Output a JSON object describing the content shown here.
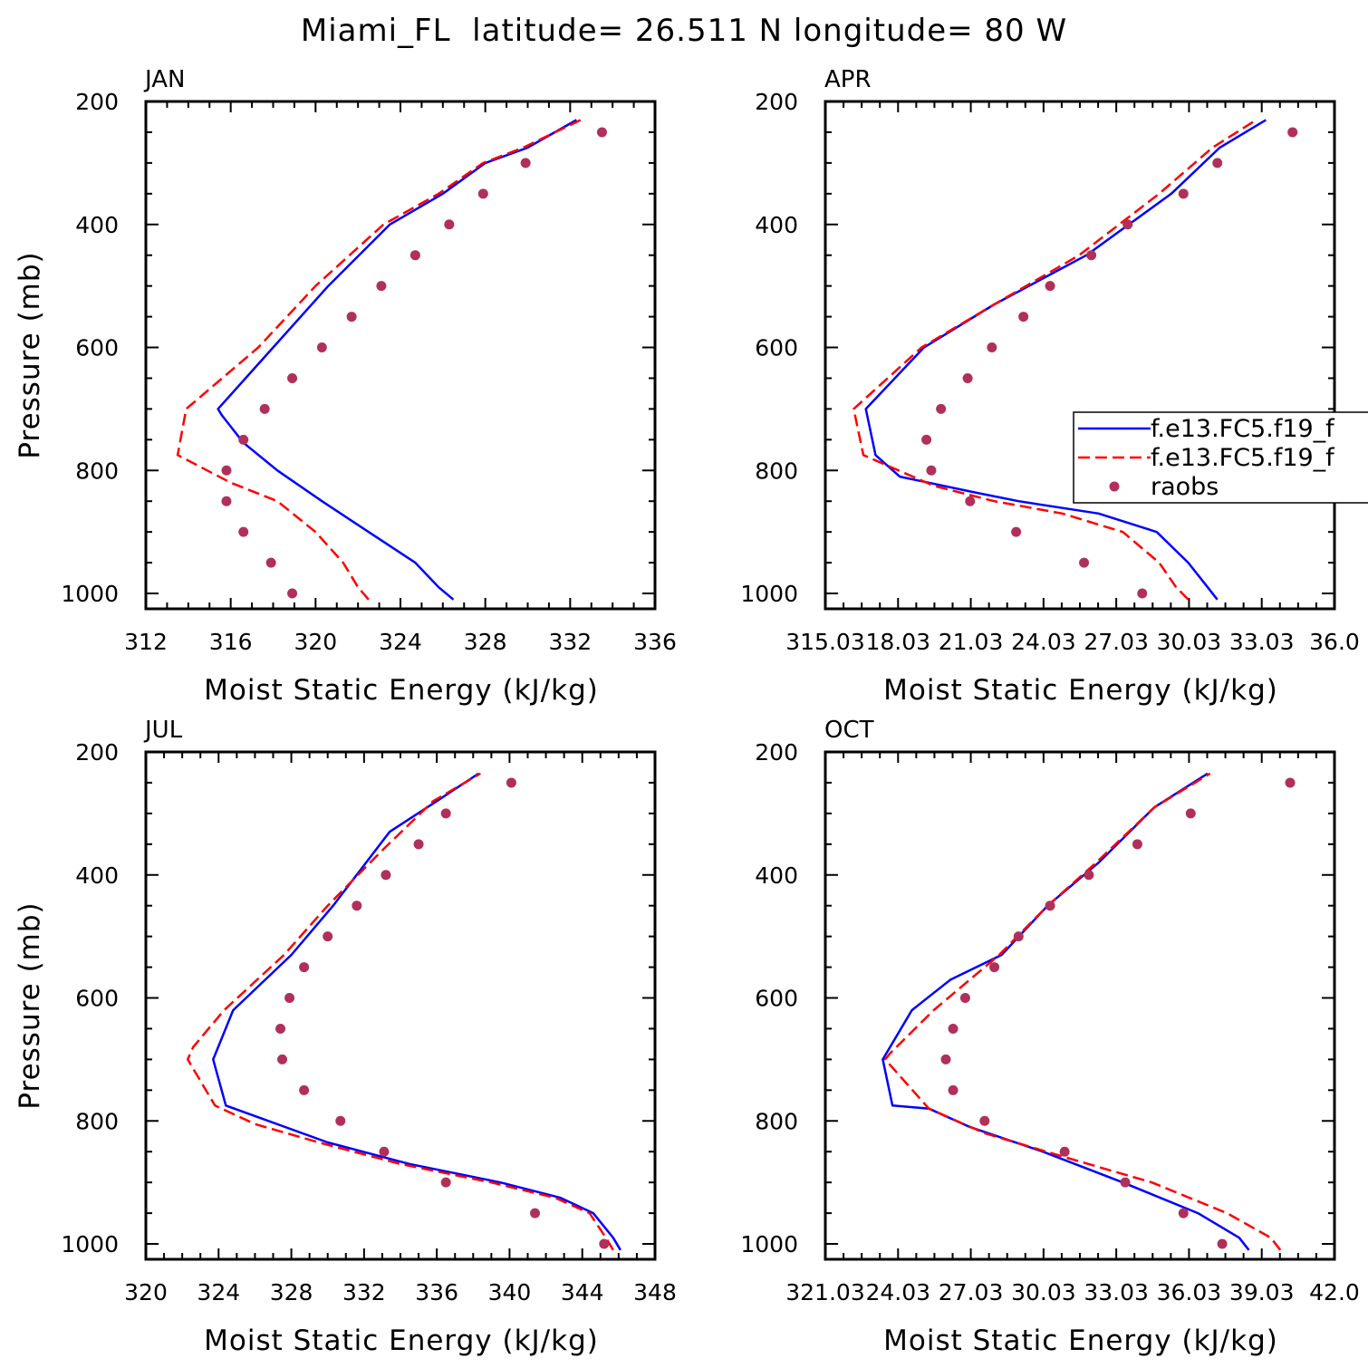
{
  "chart_data": {
    "title": "Miami_FL  latitude= 26.511 N longitude= 80 W",
    "type": "line",
    "legend": {
      "placement": "right-middle of APR panel",
      "entries": [
        "f.e13.FC5.f19_f",
        "f.e13.FC5.f19_f",
        "raobs"
      ]
    },
    "panels": [
      {
        "title": "JAN",
        "xlabel": "Moist Static Energy (kJ/kg)",
        "ylabel": "Pressure (mb)",
        "xlim": [
          312,
          336
        ],
        "ylim": [
          1025,
          200
        ],
        "xticks": [
          312,
          316,
          320,
          324,
          328,
          332,
          336
        ],
        "xtick_labels": [
          "312",
          "316",
          "320",
          "324",
          "328",
          "332",
          "336"
        ],
        "yticks": [
          200,
          400,
          600,
          800,
          1000
        ],
        "ytick_labels": [
          "200",
          "400",
          "600",
          "800",
          "1000"
        ],
        "series": [
          {
            "name": "f.e13.FC5.f19_f",
            "style": "solid",
            "color": "#0000ff",
            "x": [
              326.5,
              325.8,
              324.7,
              322.5,
              320.3,
              318.2,
              316.6,
              315.6,
              315.4,
              318.0,
              320.6,
              323.5,
              326.0,
              328.0,
              330.0,
              332.3
            ],
            "y": [
              1010,
              990,
              950,
              900,
              850,
              800,
              755,
              711,
              700,
              600,
              500,
              400,
              350,
              300,
              275,
              230
            ]
          },
          {
            "name": "f.e13.FC5.f19_f",
            "style": "dashed",
            "color": "#ff0000",
            "x": [
              322.5,
              322.0,
              321.3,
              320.0,
              318.2,
              316.0,
              313.5,
              313.9,
              317.3,
              320.0,
              323.2,
              325.8,
              327.9,
              329.8,
              332.5
            ],
            "y": [
              1010,
              990,
              950,
              900,
              850,
              820,
              775,
              700,
              600,
              500,
              400,
              350,
              300,
              275,
              230
            ]
          },
          {
            "name": "raobs",
            "style": "dots",
            "color": "#b0305a",
            "x": [
              318.9,
              317.9,
              316.6,
              315.8,
              315.8,
              316.6,
              317.6,
              318.9,
              320.3,
              321.7,
              323.1,
              324.7,
              326.3,
              327.9,
              329.9,
              333.5
            ],
            "y": [
              1000,
              950,
              900,
              850,
              800,
              750,
              700,
              650,
              600,
              550,
              500,
              450,
              400,
              350,
              300,
              250
            ]
          }
        ]
      },
      {
        "title": "APR",
        "xlabel": "Moist Static Energy (kJ/kg)",
        "ylabel": "",
        "xlim": [
          315.03,
          336.03
        ],
        "ylim": [
          1025,
          200
        ],
        "xticks": [
          315.03,
          318.03,
          321.03,
          324.03,
          327.03,
          330.03,
          333.03,
          336.03
        ],
        "xtick_labels": [
          "315.03",
          "18.03",
          "21.03",
          "24.03",
          "27.03",
          "30.03",
          "33.03",
          "36.0"
        ],
        "yticks": [
          200,
          400,
          600,
          800,
          1000
        ],
        "ytick_labels": [
          "200",
          "400",
          "600",
          "800",
          "1000"
        ],
        "series": [
          {
            "name": "f.e13.FC5.f19_f",
            "style": "solid",
            "color": "#0000ff",
            "x": [
              331.2,
              330.8,
              330.0,
              328.7,
              326.3,
              323.0,
              321.1,
              318.1,
              317.1,
              316.7,
              319.1,
              322.0,
              325.8,
              329.3,
              331.3,
              333.2
            ],
            "y": [
              1010,
              990,
              950,
              900,
              870,
              850,
              835,
              810,
              775,
              700,
              600,
              530,
              450,
              350,
              275,
              230
            ]
          },
          {
            "name": "f.e13.FC5.f19_f",
            "style": "dashed",
            "color": "#ff0000",
            "x": [
              330.0,
              329.5,
              328.8,
              327.3,
              324.8,
              322.0,
              319.5,
              316.6,
              316.2,
              319.0,
              322.0,
              325.5,
              328.8,
              331.0,
              332.8
            ],
            "y": [
              1010,
              990,
              950,
              900,
              870,
              850,
              825,
              775,
              700,
              600,
              530,
              450,
              350,
              275,
              230
            ]
          },
          {
            "name": "raobs",
            "style": "dots",
            "color": "#b0305a",
            "x": [
              328.1,
              325.7,
              322.9,
              321.0,
              319.4,
              319.2,
              319.8,
              320.9,
              321.9,
              323.2,
              324.3,
              326.0,
              327.5,
              329.8,
              331.2,
              334.3
            ],
            "y": [
              1000,
              950,
              900,
              850,
              800,
              750,
              700,
              650,
              600,
              550,
              500,
              450,
              400,
              350,
              300,
              250
            ]
          }
        ]
      },
      {
        "title": "JUL",
        "xlabel": "Moist Static Energy (kJ/kg)",
        "ylabel": "Pressure (mb)",
        "xlim": [
          320,
          348
        ],
        "ylim": [
          1025,
          200
        ],
        "xticks": [
          320,
          324,
          328,
          332,
          336,
          340,
          344,
          348
        ],
        "xtick_labels": [
          "320",
          "324",
          "328",
          "332",
          "336",
          "340",
          "344",
          "348"
        ],
        "yticks": [
          200,
          400,
          600,
          800,
          1000
        ],
        "ytick_labels": [
          "200",
          "400",
          "600",
          "800",
          "1000"
        ],
        "series": [
          {
            "name": "f.e13.FC5.f19_f",
            "style": "solid",
            "color": "#0000ff",
            "x": [
              346.1,
              345.7,
              344.6,
              342.8,
              339.5,
              334.5,
              330.0,
              324.4,
              323.7,
              324.8,
              328.0,
              330.3,
              333.4,
              336.0,
              338.3
            ],
            "y": [
              1010,
              990,
              950,
              925,
              900,
              870,
              835,
              775,
              700,
              620,
              530,
              450,
              330,
              280,
              235
            ]
          },
          {
            "name": "f.e13.FC5.f19_f",
            "style": "dashed",
            "color": "#ff0000",
            "x": [
              345.7,
              345.3,
              344.4,
              342.5,
              339.0,
              334.0,
              329.5,
              326.0,
              323.8,
              322.3,
              322.6,
              324.3,
              327.6,
              330.0,
              333.0,
              335.8,
              338.4
            ],
            "y": [
              1010,
              990,
              950,
              925,
              900,
              870,
              835,
              805,
              775,
              700,
              680,
              620,
              530,
              450,
              360,
              280,
              235
            ]
          },
          {
            "name": "raobs",
            "style": "dots",
            "color": "#b0305a",
            "x": [
              345.2,
              341.4,
              336.5,
              333.1,
              330.7,
              328.7,
              327.5,
              327.4,
              327.9,
              328.7,
              330.0,
              331.6,
              333.2,
              335.0,
              336.5,
              340.1
            ],
            "y": [
              1000,
              950,
              900,
              850,
              800,
              750,
              700,
              650,
              600,
              550,
              500,
              450,
              400,
              350,
              300,
              250
            ]
          }
        ]
      },
      {
        "title": "OCT",
        "xlabel": "Moist Static Energy (kJ/kg)",
        "ylabel": "",
        "xlim": [
          321.03,
          342.03
        ],
        "ylim": [
          1025,
          200
        ],
        "xticks": [
          321.03,
          324.03,
          327.03,
          330.03,
          333.03,
          336.03,
          339.03,
          342.03
        ],
        "xtick_labels": [
          "321.03",
          "24.03",
          "27.03",
          "30.03",
          "33.03",
          "36.03",
          "39.03",
          "42.0"
        ],
        "yticks": [
          200,
          400,
          600,
          800,
          1000
        ],
        "ytick_labels": [
          "200",
          "400",
          "600",
          "800",
          "1000"
        ],
        "series": [
          {
            "name": "f.e13.FC5.f19_f",
            "style": "solid",
            "color": "#0000ff",
            "x": [
              338.5,
              338.1,
              336.4,
              333.3,
              330.0,
              327.0,
              325.3,
              323.8,
              323.4,
              324.6,
              326.2,
              328.3,
              330.2,
              332.3,
              334.6,
              336.8
            ],
            "y": [
              1010,
              990,
              950,
              900,
              850,
              810,
              780,
              775,
              700,
              620,
              570,
              530,
              450,
              380,
              290,
              235
            ]
          },
          {
            "name": "f.e13.FC5.f19_f",
            "style": "dashed",
            "color": "#ff0000",
            "x": [
              339.8,
              339.4,
              337.6,
              334.5,
              331.0,
              327.6,
              325.3,
              323.5,
              323.7,
              325.5,
              328.2,
              330.2,
              332.2,
              334.6,
              336.9
            ],
            "y": [
              1010,
              990,
              950,
              900,
              860,
              820,
              780,
              700,
              690,
              620,
              530,
              450,
              380,
              290,
              235
            ]
          },
          {
            "name": "raobs",
            "style": "dots",
            "color": "#b0305a",
            "x": [
              337.4,
              335.8,
              333.4,
              330.9,
              327.6,
              326.3,
              326.0,
              326.3,
              326.8,
              328.0,
              329.0,
              330.3,
              331.9,
              333.9,
              336.1,
              340.2
            ],
            "y": [
              1000,
              950,
              900,
              850,
              800,
              750,
              700,
              650,
              600,
              550,
              500,
              450,
              400,
              350,
              300,
              250
            ]
          }
        ]
      }
    ]
  }
}
